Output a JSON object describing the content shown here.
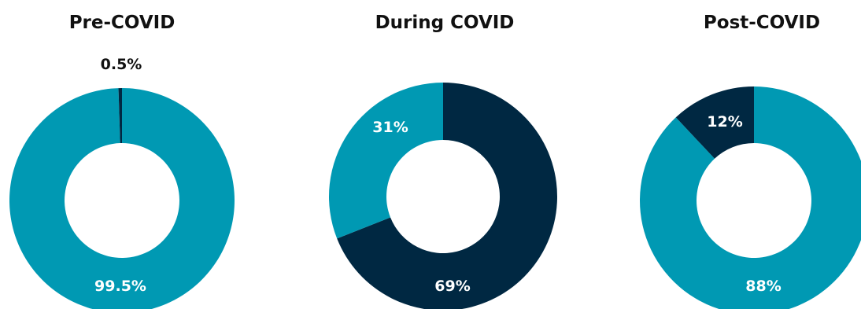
{
  "colors": {
    "teal": "#0099B3",
    "navy": "#002842",
    "outside_label": "#111111",
    "inside_label": "#ffffff"
  },
  "chart_data": [
    {
      "type": "pie",
      "variant": "donut",
      "title": "Pre-COVID",
      "slices": [
        {
          "value": 99.5,
          "label": "99.5%",
          "color": "#0099B3"
        },
        {
          "value": 0.5,
          "label": "0.5%",
          "color": "#002842"
        }
      ]
    },
    {
      "type": "pie",
      "variant": "donut",
      "title": "During COVID",
      "slices": [
        {
          "value": 69,
          "label": "69%",
          "color": "#002842"
        },
        {
          "value": 31,
          "label": "31%",
          "color": "#0099B3"
        }
      ]
    },
    {
      "type": "pie",
      "variant": "donut",
      "title": "Post-COVID",
      "slices": [
        {
          "value": 88,
          "label": "88%",
          "color": "#0099B3"
        },
        {
          "value": 12,
          "label": "12%",
          "color": "#002842"
        }
      ]
    }
  ]
}
